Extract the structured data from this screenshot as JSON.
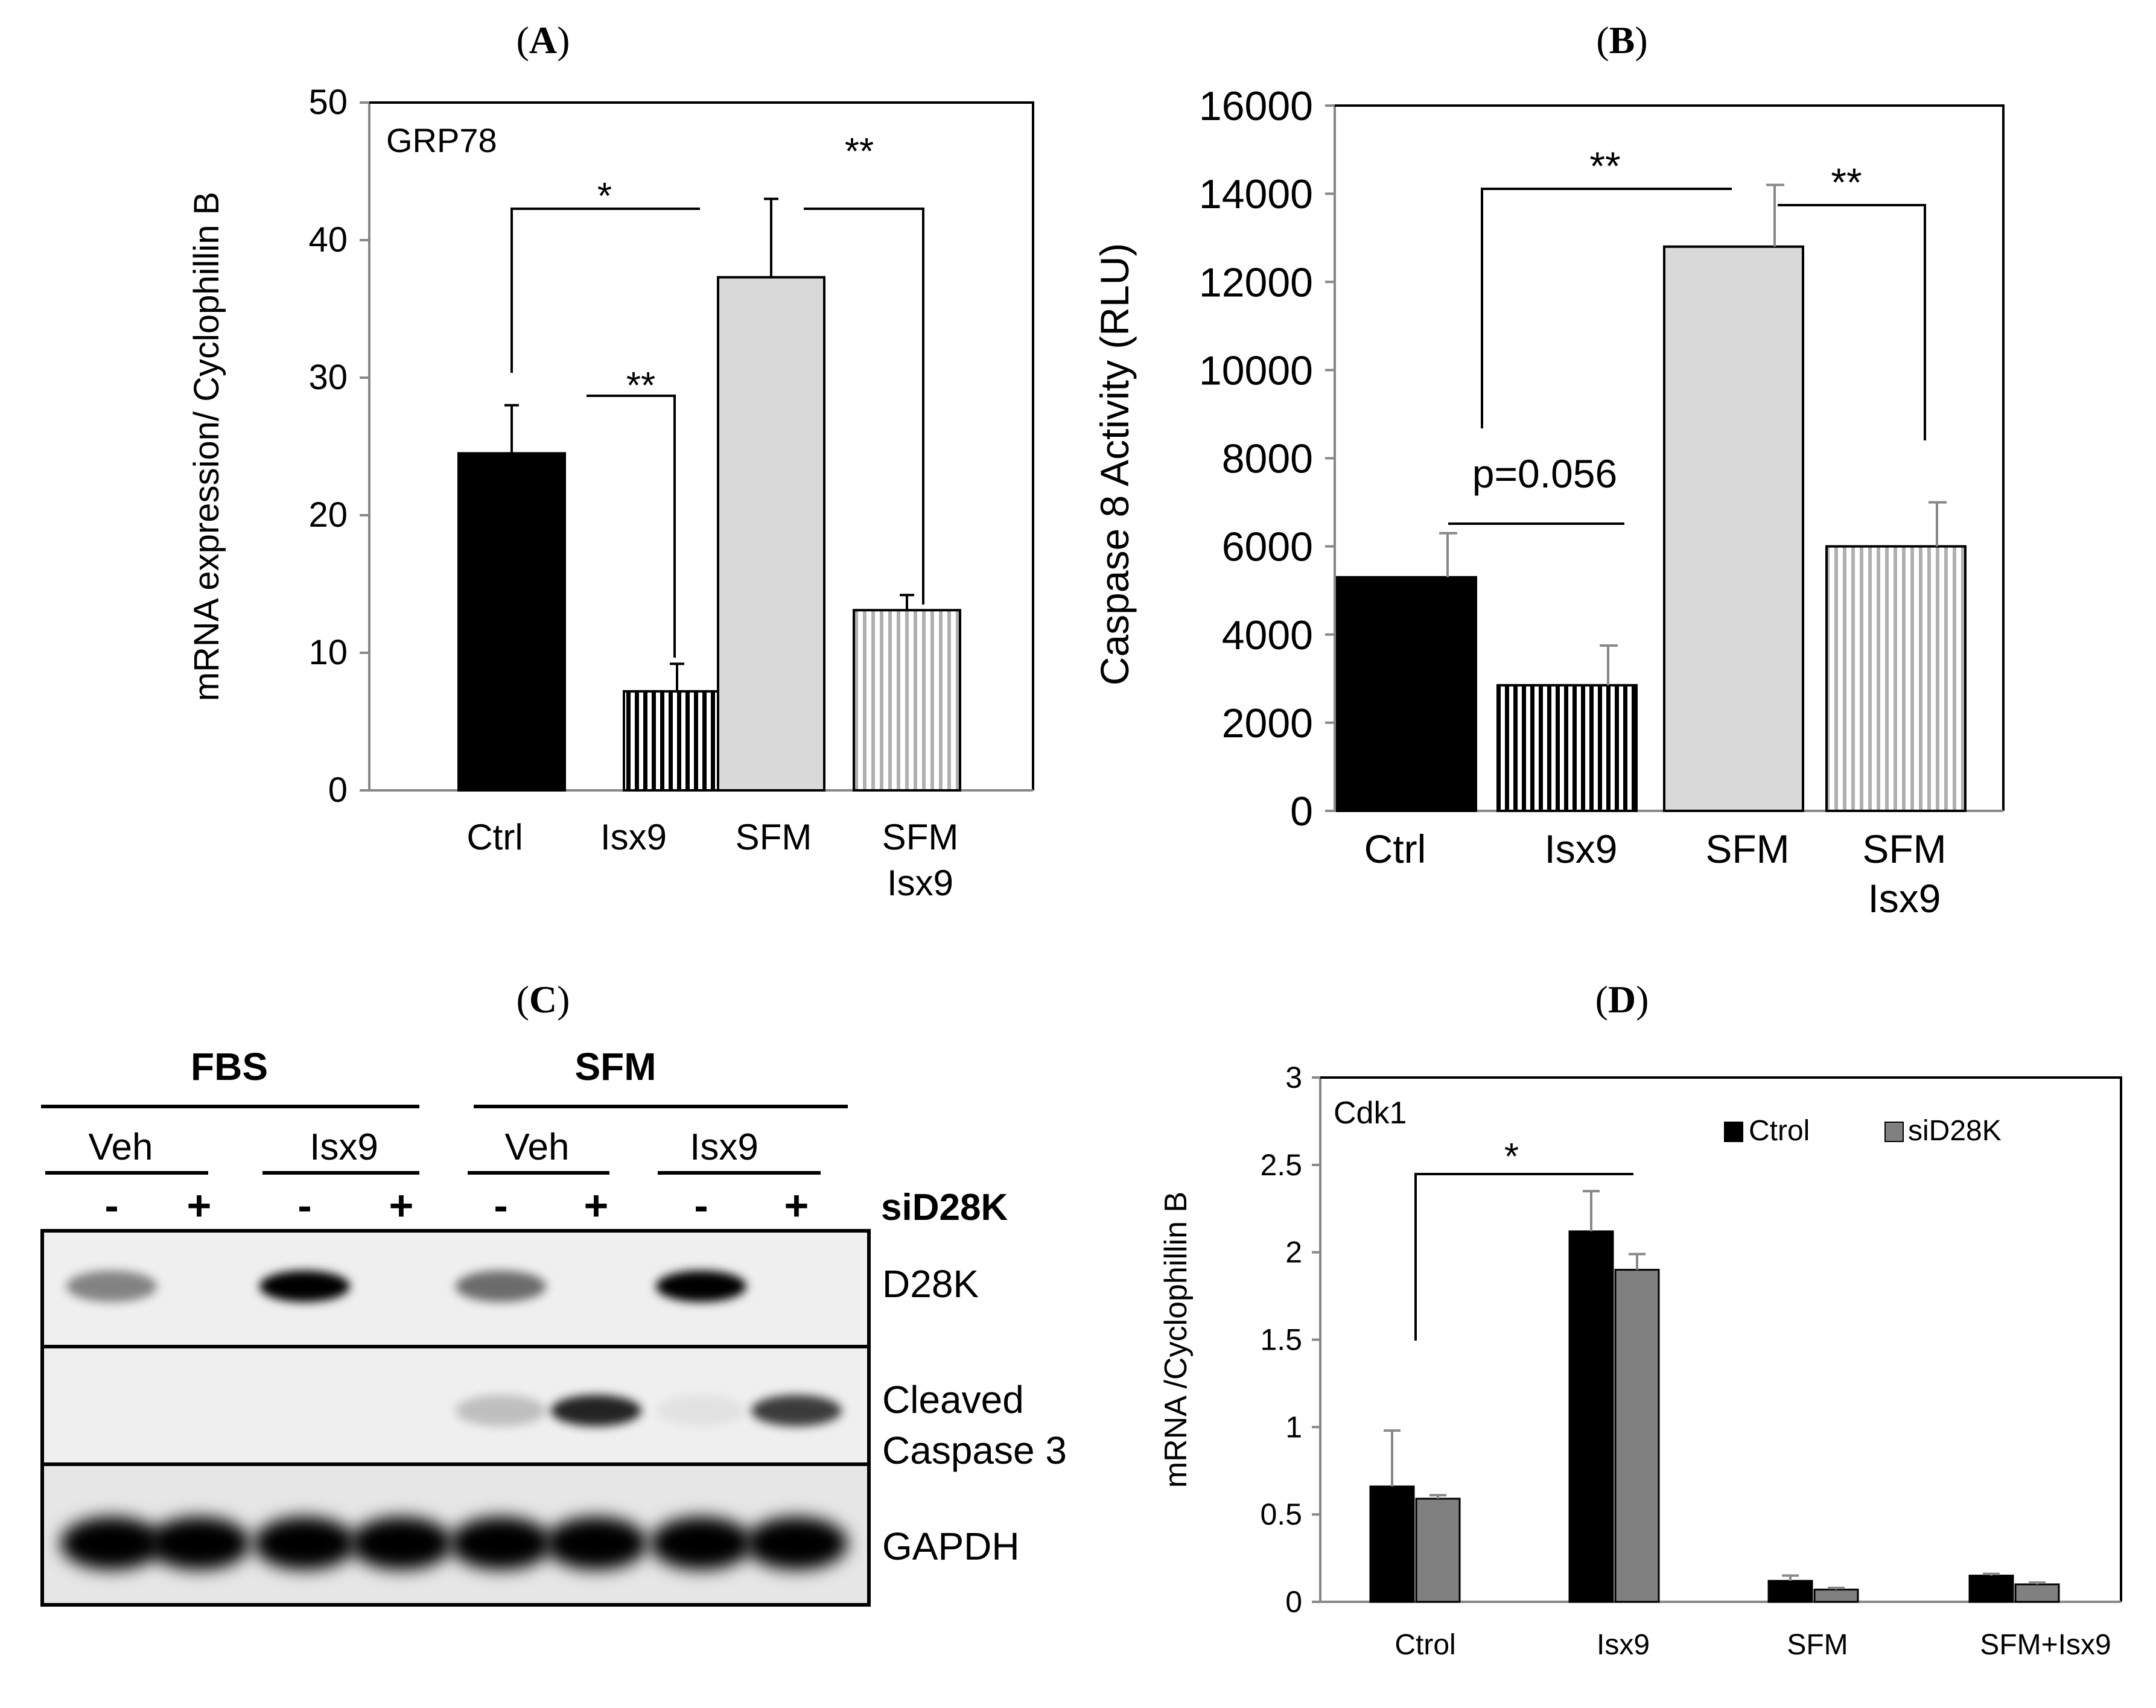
{
  "panels": {
    "a": {
      "label": "A"
    },
    "b": {
      "label": "B"
    },
    "c": {
      "label": "C"
    },
    "d": {
      "label": "D"
    }
  },
  "colors": {
    "ctrl": "#000000",
    "sfm": "#d9d9d9",
    "d_ctrol": "#000000",
    "d_sid28k": "#808080"
  },
  "chart_data": [
    {
      "panel": "A",
      "type": "bar",
      "inset_title": "GRP78",
      "ylabel": "mRNA expression/ Cyclophillin B",
      "xlabel": "",
      "ylim": [
        0,
        50
      ],
      "yticks": [
        0,
        10,
        20,
        30,
        40,
        50
      ],
      "categories": [
        {
          "id": "ctrl",
          "lines": [
            "Ctrl"
          ]
        },
        {
          "id": "isx9",
          "lines": [
            "Isx9"
          ]
        },
        {
          "id": "sfm",
          "lines": [
            "SFM"
          ]
        },
        {
          "id": "sfmisx9",
          "lines": [
            "SFM",
            "Isx9"
          ]
        }
      ],
      "values": [
        24.5,
        7.2,
        37.3,
        13.1
      ],
      "errors": [
        3.5,
        2.0,
        5.7,
        1.1
      ],
      "fills": [
        "solid-black",
        "black-stripes",
        "solid-light-gray",
        "gray-stripes"
      ],
      "significance": [
        {
          "from": 0,
          "to": 2,
          "label": "*"
        },
        {
          "from": 1,
          "to": 1,
          "label": "**"
        },
        {
          "from": 2,
          "to": 3,
          "label": "**"
        }
      ]
    },
    {
      "panel": "B",
      "type": "bar",
      "inset_title": "",
      "ylabel": "Caspase 8 Activity (RLU)",
      "xlabel": "",
      "ylim": [
        0,
        16000
      ],
      "yticks": [
        0,
        2000,
        4000,
        6000,
        8000,
        10000,
        12000,
        14000,
        16000
      ],
      "categories": [
        {
          "id": "ctrl",
          "lines": [
            "Ctrl"
          ]
        },
        {
          "id": "isx9",
          "lines": [
            "Isx9"
          ]
        },
        {
          "id": "sfm",
          "lines": [
            "SFM"
          ]
        },
        {
          "id": "sfmisx9",
          "lines": [
            "SFM",
            "Isx9"
          ]
        }
      ],
      "values": [
        5300,
        2850,
        12800,
        6000
      ],
      "errors": [
        1000,
        900,
        1400,
        1000
      ],
      "fills": [
        "solid-black",
        "black-stripes",
        "solid-light-gray",
        "gray-stripes"
      ],
      "significance": [
        {
          "from": 0,
          "to": 2,
          "label": "**"
        },
        {
          "from": 2,
          "to": 3,
          "label": "**"
        },
        {
          "from": 0,
          "to": 1,
          "label": "p=0.056"
        }
      ]
    },
    {
      "panel": "D",
      "type": "bar",
      "inset_title": "Cdk1",
      "ylabel": "mRNA  /Cyclophillin B",
      "xlabel": "",
      "ylim": [
        0,
        3
      ],
      "yticks": [
        "0",
        "0.5",
        "1",
        "1.5",
        "2",
        "2.5",
        "3"
      ],
      "categories": [
        "Ctrol",
        "Isx9",
        "SFM",
        "SFM+Isx9"
      ],
      "series": [
        {
          "name": "Ctrol",
          "values": [
            0.66,
            2.12,
            0.12,
            0.15
          ],
          "errors": [
            0.32,
            0.23,
            0.03,
            0.01
          ]
        },
        {
          "name": "siD28K",
          "values": [
            0.59,
            1.9,
            0.07,
            0.1
          ],
          "errors": [
            0.02,
            0.09,
            0.01,
            0.01
          ]
        }
      ],
      "legend_position": "top-right",
      "significance": [
        {
          "from": "Ctrol:Ctrol",
          "to": "Isx9:Ctrol",
          "label": "*"
        }
      ]
    }
  ],
  "blot": {
    "groups": [
      "FBS",
      "SFM"
    ],
    "subgroups": [
      "Veh",
      "Isx9",
      "Veh",
      "Isx9"
    ],
    "lane_signs": [
      "-",
      "+",
      "-",
      "+",
      "-",
      "+",
      "-",
      "+"
    ],
    "sirna_label": "siD28K",
    "rows": [
      {
        "id": "d28k",
        "lines": [
          "D28K"
        ],
        "intensities": [
          0.45,
          0.0,
          1.0,
          0.0,
          0.55,
          0.0,
          1.0,
          0.0
        ]
      },
      {
        "id": "cc3",
        "lines": [
          "Cleaved",
          "Caspase 3"
        ],
        "intensities": [
          0.0,
          0.0,
          0.0,
          0.0,
          0.2,
          0.85,
          0.05,
          0.75
        ]
      },
      {
        "id": "gapdh",
        "lines": [
          "GAPDH"
        ],
        "intensities": [
          1.0,
          1.0,
          1.0,
          1.0,
          1.0,
          1.0,
          1.0,
          1.0
        ]
      }
    ]
  }
}
